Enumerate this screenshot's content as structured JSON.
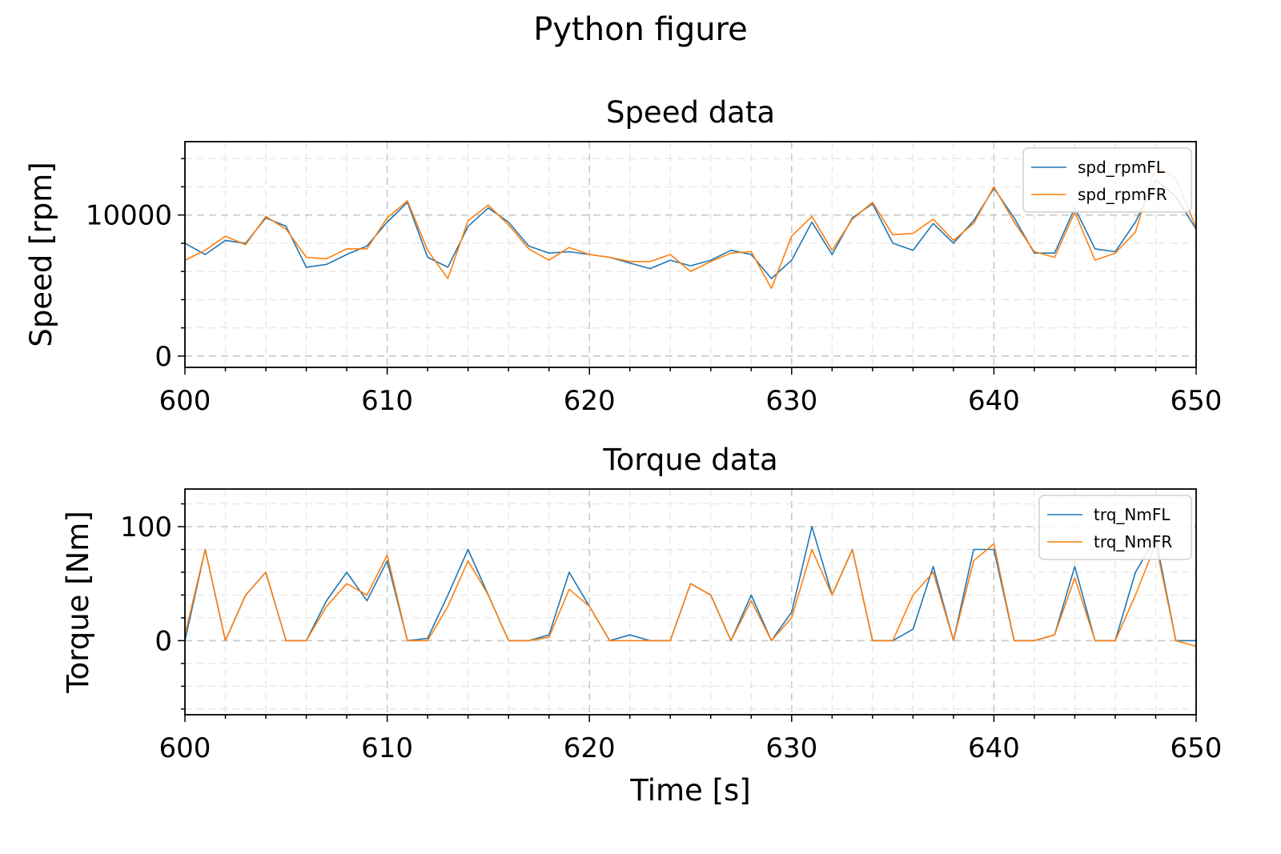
{
  "figure": {
    "title": "Python figure"
  },
  "colors": {
    "series1": "#1f77b4",
    "series2": "#ff7f0e",
    "grid_major": "#c8c8c8",
    "grid_minor": "#e4e4e4"
  },
  "chart_data": [
    {
      "type": "line",
      "title": "Speed data",
      "xlabel": "",
      "ylabel": "Speed [rpm]",
      "xlim": [
        600,
        650
      ],
      "ylim": [
        -800,
        15200
      ],
      "xticks": [
        600,
        610,
        620,
        630,
        640,
        650
      ],
      "xtick_labels": [
        "600",
        "610",
        "620",
        "630",
        "640",
        "650"
      ],
      "yticks": [
        0,
        10000
      ],
      "ytick_labels": [
        "0",
        "10000"
      ],
      "legend_position": "top-right",
      "grid": true,
      "x": [
        600,
        601,
        602,
        603,
        604,
        605,
        606,
        607,
        608,
        609,
        610,
        611,
        612,
        613,
        614,
        615,
        616,
        617,
        618,
        619,
        620,
        621,
        622,
        623,
        624,
        625,
        626,
        627,
        628,
        629,
        630,
        631,
        632,
        633,
        634,
        635,
        636,
        637,
        638,
        639,
        640,
        641,
        642,
        643,
        644,
        645,
        646,
        647,
        648,
        649,
        650
      ],
      "series": [
        {
          "name": "spd_rpmFL",
          "values": [
            8000,
            7200,
            8200,
            8000,
            9800,
            9200,
            6300,
            6500,
            7200,
            7800,
            9500,
            10900,
            7000,
            6300,
            9200,
            10500,
            9500,
            7800,
            7300,
            7400,
            7200,
            7000,
            6600,
            6200,
            6800,
            6400,
            6800,
            7500,
            7200,
            5500,
            6800,
            9500,
            7200,
            9800,
            10800,
            8000,
            7500,
            9400,
            8000,
            9600,
            11900,
            9800,
            7300,
            7300,
            10500,
            7600,
            7400,
            9500,
            12500,
            11300,
            9000
          ]
        },
        {
          "name": "spd_rpmFR",
          "values": [
            6800,
            7500,
            8500,
            7900,
            9900,
            9000,
            7000,
            6900,
            7600,
            7600,
            9800,
            11000,
            7500,
            5500,
            9600,
            10700,
            9300,
            7600,
            6800,
            7700,
            7200,
            7000,
            6700,
            6700,
            7200,
            6000,
            6700,
            7300,
            7400,
            4800,
            8500,
            9900,
            7500,
            9700,
            10900,
            8600,
            8700,
            9700,
            8200,
            9400,
            12000,
            9500,
            7400,
            7000,
            10200,
            6800,
            7300,
            8800,
            13500,
            12600,
            9100
          ]
        }
      ]
    },
    {
      "type": "line",
      "title": "Torque data",
      "xlabel": "Time [s]",
      "ylabel": "Torque [Nm]",
      "xlim": [
        600,
        650
      ],
      "ylim": [
        -65,
        133
      ],
      "xticks": [
        600,
        610,
        620,
        630,
        640,
        650
      ],
      "xtick_labels": [
        "600",
        "610",
        "620",
        "630",
        "640",
        "650"
      ],
      "yticks": [
        0,
        100
      ],
      "ytick_labels": [
        "0",
        "100"
      ],
      "legend_position": "top-right",
      "grid": true,
      "x": [
        600,
        601,
        602,
        603,
        604,
        605,
        606,
        607,
        608,
        609,
        610,
        611,
        612,
        613,
        614,
        615,
        616,
        617,
        618,
        619,
        620,
        621,
        622,
        623,
        624,
        625,
        626,
        627,
        628,
        629,
        630,
        631,
        632,
        633,
        634,
        635,
        636,
        637,
        638,
        639,
        640,
        641,
        642,
        643,
        644,
        645,
        646,
        647,
        648,
        649,
        650
      ],
      "series": [
        {
          "name": "trq_NmFL",
          "values": [
            0,
            80,
            0,
            40,
            60,
            0,
            0,
            35,
            60,
            35,
            70,
            0,
            2,
            40,
            80,
            40,
            0,
            0,
            5,
            60,
            30,
            0,
            5,
            0,
            0,
            50,
            40,
            0,
            40,
            0,
            25,
            100,
            40,
            80,
            0,
            0,
            10,
            65,
            0,
            80,
            80,
            0,
            0,
            5,
            65,
            0,
            0,
            60,
            90,
            0,
            0
          ]
        },
        {
          "name": "trq_NmFR",
          "values": [
            5,
            80,
            0,
            40,
            60,
            0,
            0,
            30,
            50,
            40,
            75,
            0,
            0,
            30,
            70,
            40,
            0,
            0,
            3,
            45,
            30,
            0,
            0,
            0,
            0,
            50,
            40,
            0,
            35,
            0,
            20,
            80,
            40,
            80,
            0,
            0,
            40,
            60,
            0,
            70,
            85,
            0,
            0,
            5,
            55,
            0,
            0,
            40,
            85,
            0,
            -5
          ]
        }
      ]
    }
  ]
}
